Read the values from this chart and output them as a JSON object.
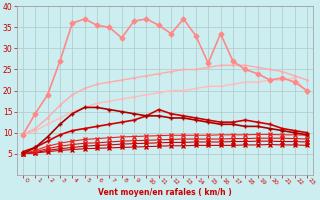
{
  "xlabel": "Vent moyen/en rafales ( km/h )",
  "xlim": [
    -0.5,
    23.5
  ],
  "ylim": [
    0,
    40
  ],
  "yticks": [
    5,
    10,
    15,
    20,
    25,
    30,
    35,
    40
  ],
  "xticks": [
    0,
    1,
    2,
    3,
    4,
    5,
    6,
    7,
    8,
    9,
    10,
    11,
    12,
    13,
    14,
    15,
    16,
    17,
    18,
    19,
    20,
    21,
    22,
    23
  ],
  "bg_color": "#cceef0",
  "grid_color": "#b0c8c8",
  "lines": [
    {
      "y": [
        5,
        5.2,
        5.5,
        5.8,
        6.0,
        6.2,
        6.3,
        6.4,
        6.5,
        6.6,
        6.7,
        6.8,
        6.9,
        6.9,
        7.0,
        7.0,
        7.0,
        7.0,
        7.1,
        7.1,
        7.2,
        7.1,
        7.1,
        7.0
      ],
      "color": "#cc0000",
      "lw": 0.8,
      "marker": "x",
      "ms": 2.5,
      "zorder": 4
    },
    {
      "y": [
        5,
        5.3,
        5.8,
        6.2,
        6.5,
        6.8,
        7.0,
        7.1,
        7.3,
        7.4,
        7.5,
        7.6,
        7.7,
        7.7,
        7.8,
        7.8,
        7.8,
        7.9,
        7.9,
        8.0,
        8.0,
        7.9,
        7.9,
        7.8
      ],
      "color": "#cc0000",
      "lw": 0.8,
      "marker": "x",
      "ms": 2.5,
      "zorder": 4
    },
    {
      "y": [
        5,
        5.5,
        6.2,
        6.8,
        7.2,
        7.5,
        7.6,
        7.8,
        8.0,
        8.1,
        8.2,
        8.3,
        8.4,
        8.5,
        8.5,
        8.5,
        8.5,
        8.6,
        8.6,
        8.7,
        8.7,
        8.7,
        8.6,
        8.5
      ],
      "color": "#dd1111",
      "lw": 0.8,
      "marker": "x",
      "ms": 2.5,
      "zorder": 4
    },
    {
      "y": [
        5,
        5.8,
        6.8,
        7.5,
        8.0,
        8.4,
        8.6,
        8.8,
        9.0,
        9.1,
        9.2,
        9.3,
        9.4,
        9.4,
        9.4,
        9.4,
        9.5,
        9.5,
        9.5,
        9.6,
        9.6,
        9.5,
        9.5,
        9.4
      ],
      "color": "#ee2222",
      "lw": 0.8,
      "marker": "x",
      "ms": 2.5,
      "zorder": 4
    },
    {
      "y": [
        5.5,
        6.5,
        8.0,
        9.5,
        10.5,
        11.0,
        11.5,
        12.0,
        12.5,
        13.0,
        14.0,
        15.5,
        14.5,
        14.0,
        13.5,
        13.0,
        12.5,
        12.5,
        13.0,
        12.5,
        12.0,
        11.0,
        10.5,
        10.0
      ],
      "color": "#cc0000",
      "lw": 1.2,
      "marker": "+",
      "ms": 3.5,
      "zorder": 5
    },
    {
      "y": [
        5,
        6.5,
        9.0,
        12.0,
        14.5,
        16.0,
        16.0,
        15.5,
        15.0,
        14.5,
        14.0,
        14.0,
        13.5,
        13.5,
        13.0,
        12.5,
        12.0,
        12.0,
        11.5,
        11.5,
        11.0,
        10.5,
        10.0,
        9.5
      ],
      "color": "#aa0000",
      "lw": 1.2,
      "marker": "+",
      "ms": 3.5,
      "zorder": 5
    },
    {
      "y": [
        9.5,
        10.5,
        12.0,
        13.5,
        15.0,
        16.0,
        17.0,
        17.5,
        18.0,
        18.5,
        19.0,
        19.5,
        20.0,
        20.0,
        20.5,
        21.0,
        21.0,
        21.5,
        22.0,
        22.0,
        22.5,
        22.5,
        23.0,
        19.5
      ],
      "color": "#ffbbbb",
      "lw": 1.0,
      "marker": ".",
      "ms": 2,
      "zorder": 3
    },
    {
      "y": [
        9.5,
        11.0,
        13.5,
        16.5,
        19.0,
        20.5,
        21.5,
        22.0,
        22.5,
        23.0,
        23.5,
        24.0,
        24.5,
        25.0,
        25.0,
        25.5,
        26.0,
        26.0,
        26.0,
        25.5,
        25.0,
        24.5,
        23.5,
        22.5
      ],
      "color": "#ffaaaa",
      "lw": 1.0,
      "marker": ".",
      "ms": 2,
      "zorder": 3
    },
    {
      "y": [
        9.5,
        14.5,
        19.0,
        27.0,
        36.0,
        37.0,
        35.5,
        35.0,
        32.5,
        36.5,
        37.0,
        35.5,
        33.5,
        37.0,
        33.0,
        26.5,
        33.5,
        27.0,
        25.0,
        24.0,
        22.5,
        23.0,
        22.0,
        20.0
      ],
      "color": "#ff8888",
      "lw": 1.2,
      "marker": "D",
      "ms": 2.5,
      "zorder": 6
    }
  ]
}
